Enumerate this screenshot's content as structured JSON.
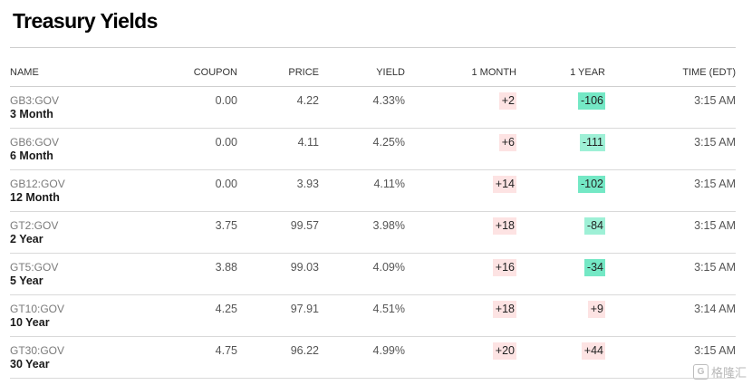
{
  "page": {
    "title": "Treasury Yields"
  },
  "table": {
    "columns": {
      "name": "NAME",
      "coupon": "COUPON",
      "price": "PRICE",
      "yield": "YIELD",
      "month": "1 MONTH",
      "year": "1 YEAR",
      "time": "TIME (EDT)"
    },
    "rows": [
      {
        "ticker": "GB3:GOV",
        "name": "3 Month",
        "coupon": "0.00",
        "price": "4.22",
        "yield": "4.33%",
        "month": "+2",
        "year": "-106",
        "time": "3:15 AM"
      },
      {
        "ticker": "GB6:GOV",
        "name": "6 Month",
        "coupon": "0.00",
        "price": "4.11",
        "yield": "4.25%",
        "month": "+6",
        "year": "-111",
        "time": "3:15 AM"
      },
      {
        "ticker": "GB12:GOV",
        "name": "12 Month",
        "coupon": "0.00",
        "price": "3.93",
        "yield": "4.11%",
        "month": "+14",
        "year": "-102",
        "time": "3:15 AM"
      },
      {
        "ticker": "GT2:GOV",
        "name": "2 Year",
        "coupon": "3.75",
        "price": "99.57",
        "yield": "3.98%",
        "month": "+18",
        "year": "-84",
        "time": "3:15 AM"
      },
      {
        "ticker": "GT5:GOV",
        "name": "5 Year",
        "coupon": "3.88",
        "price": "99.03",
        "yield": "4.09%",
        "month": "+16",
        "year": "-34",
        "time": "3:15 AM"
      },
      {
        "ticker": "GT10:GOV",
        "name": "10 Year",
        "coupon": "4.25",
        "price": "97.91",
        "yield": "4.51%",
        "month": "+18",
        "year": "+9",
        "time": "3:14 AM"
      },
      {
        "ticker": "GT30:GOV",
        "name": "30 Year",
        "coupon": "4.75",
        "price": "96.22",
        "yield": "4.99%",
        "month": "+20",
        "year": "+44",
        "time": "3:15 AM"
      }
    ]
  },
  "colors": {
    "positive_change_bg": "#fde3e3",
    "negative_change_bg": "#74e8c5"
  },
  "watermark": {
    "icon": "gelonghui-logo-icon",
    "text": "格隆汇"
  }
}
